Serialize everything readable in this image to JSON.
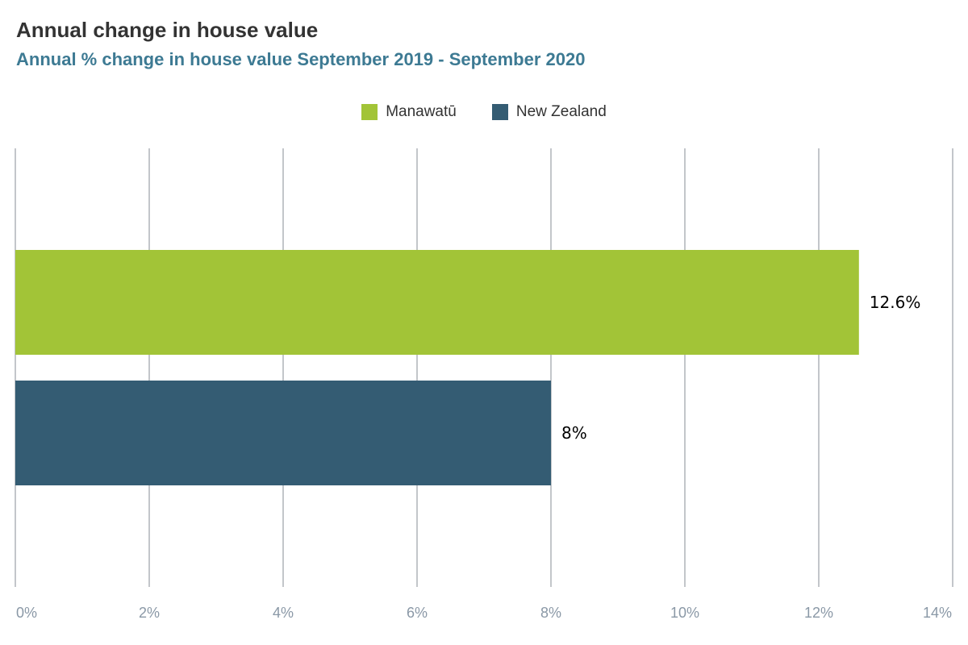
{
  "title": "Annual change in house value",
  "subtitle": "Annual % change in house value September 2019 - September 2020",
  "colors": {
    "manawatu": "#a2c437",
    "new_zealand": "#345c73",
    "gridline": "#c3c6ca",
    "tick_label": "#8a98a6",
    "data_label": "#000000"
  },
  "legend": [
    {
      "label": "Manawatū",
      "color": "#a2c437"
    },
    {
      "label": "New Zealand",
      "color": "#345c73"
    }
  ],
  "chart_data": {
    "type": "bar",
    "orientation": "horizontal",
    "title": "Annual change in house value",
    "subtitle": "Annual % change in house value September 2019 - September 2020",
    "series": [
      {
        "name": "Manawatū",
        "values": [
          12.6
        ],
        "data_labels": [
          "12.6%"
        ],
        "color": "#a2c437"
      },
      {
        "name": "New Zealand",
        "values": [
          8
        ],
        "data_labels": [
          "8%"
        ],
        "color": "#345c73"
      }
    ],
    "xlim": [
      0,
      14
    ],
    "x_ticks": [
      0,
      2,
      4,
      6,
      8,
      10,
      12,
      14
    ],
    "x_tick_labels": [
      "0%",
      "2%",
      "4%",
      "6%",
      "8%",
      "10%",
      "12%",
      "14%"
    ],
    "grid": true,
    "legend_position": "top-center"
  }
}
